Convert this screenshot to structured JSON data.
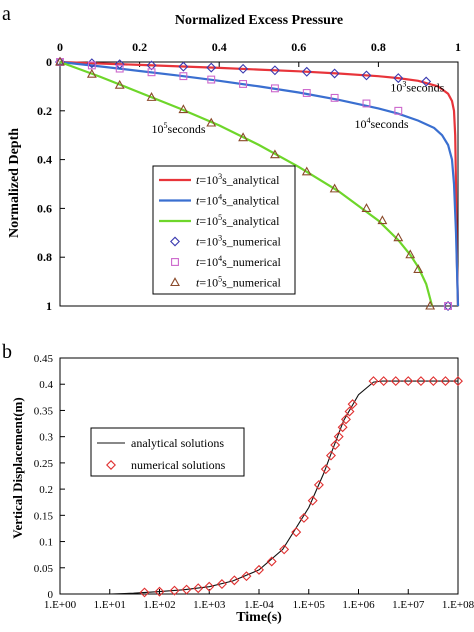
{
  "panels": [
    {
      "label": "a",
      "chart_data": {
        "type": "line",
        "title": "Normalized Excess Pressure",
        "xlabel": "Normalized Excess Pressure",
        "ylabel": "Normalized Depth",
        "xlim": [
          0,
          1
        ],
        "ylim": [
          0,
          1
        ],
        "y_inverted": true,
        "x_axis_position": "top",
        "x_ticks": [
          "0",
          "0.2",
          "0.4",
          "0.6",
          "0.8",
          "1"
        ],
        "y_ticks": [
          "0",
          "0.2",
          "0.4",
          "0.6",
          "0.8",
          "1"
        ],
        "grid": false,
        "legend_position": "lower-left",
        "annotations": [
          {
            "text": "10^3seconds",
            "base": "10",
            "sup": "3",
            "suffix": "seconds",
            "x": 0.83,
            "y": 0.12
          },
          {
            "text": "10^4seconds",
            "base": "10",
            "sup": "4",
            "suffix": "seconds",
            "x": 0.74,
            "y": 0.27
          },
          {
            "text": "10^5seconds",
            "base": "10",
            "sup": "5",
            "suffix": "seconds",
            "x": 0.23,
            "y": 0.29
          }
        ],
        "series": [
          {
            "legend": "t=10^3s_analytical",
            "lead": "t",
            "base": "=10",
            "sup": "3",
            "tail": "s_analytical",
            "kind": "line",
            "color": "#e8343a",
            "x": [
              0,
              0.1,
              0.2,
              0.3,
              0.4,
              0.5,
              0.6,
              0.7,
              0.8,
              0.85,
              0.9,
              0.95,
              0.975,
              0.985,
              0.99,
              0.993,
              0.995,
              0.997,
              1.0
            ],
            "y": [
              0,
              0.006,
              0.012,
              0.018,
              0.024,
              0.031,
              0.038,
              0.047,
              0.058,
              0.066,
              0.077,
              0.1,
              0.13,
              0.16,
              0.2,
              0.3,
              0.5,
              0.8,
              1.0
            ]
          },
          {
            "legend": "t=10^4s_analytical",
            "lead": "t",
            "base": "=10",
            "sup": "4",
            "tail": "s_analytical",
            "kind": "line",
            "color": "#3a6fd0",
            "x": [
              0,
              0.1,
              0.2,
              0.3,
              0.4,
              0.5,
              0.6,
              0.7,
              0.8,
              0.85,
              0.9,
              0.94,
              0.96,
              0.975,
              0.985,
              0.99,
              0.995,
              1.0
            ],
            "y": [
              0,
              0.018,
              0.037,
              0.056,
              0.077,
              0.1,
              0.125,
              0.155,
              0.19,
              0.212,
              0.24,
              0.27,
              0.3,
              0.34,
              0.4,
              0.5,
              0.7,
              1.0
            ]
          },
          {
            "legend": "t=10^5s_analytical",
            "lead": "t",
            "base": "=10",
            "sup": "5",
            "tail": "s_analytical",
            "kind": "line",
            "color": "#6ed62a",
            "x": [
              0,
              0.1,
              0.2,
              0.3,
              0.4,
              0.5,
              0.6,
              0.7,
              0.8,
              0.85,
              0.88,
              0.9,
              0.92,
              0.935
            ],
            "y": [
              0,
              0.06,
              0.125,
              0.19,
              0.26,
              0.34,
              0.43,
              0.53,
              0.65,
              0.73,
              0.79,
              0.84,
              0.91,
              1.0
            ]
          },
          {
            "legend": "t=10^3s_numerical",
            "lead": "t",
            "base": "=10",
            "sup": "3",
            "tail": "s_numerical",
            "kind": "marker",
            "marker": "diamond",
            "color": "#3a3ab0",
            "x": [
              0,
              0.08,
              0.15,
              0.23,
              0.31,
              0.38,
              0.46,
              0.54,
              0.62,
              0.69,
              0.77,
              0.85,
              0.92,
              0.975
            ],
            "y": [
              0,
              0.005,
              0.009,
              0.014,
              0.019,
              0.023,
              0.028,
              0.034,
              0.04,
              0.047,
              0.055,
              0.066,
              0.08,
              1.0
            ]
          },
          {
            "legend": "t=10^4s_numerical",
            "lead": "t",
            "base": "=10",
            "sup": "4",
            "tail": "s_numerical",
            "kind": "marker",
            "marker": "square",
            "color": "#cc66cc",
            "x": [
              0,
              0.08,
              0.15,
              0.23,
              0.31,
              0.38,
              0.46,
              0.54,
              0.62,
              0.69,
              0.77,
              0.85,
              0.975
            ],
            "y": [
              0,
              0.014,
              0.027,
              0.042,
              0.058,
              0.072,
              0.09,
              0.108,
              0.127,
              0.147,
              0.17,
              0.2,
              1.0
            ]
          },
          {
            "legend": "t=10^5s_numerical",
            "lead": "t",
            "base": "=10",
            "sup": "5",
            "tail": "s_numerical",
            "kind": "marker",
            "marker": "triangle",
            "color": "#8a4a2a",
            "x": [
              0,
              0.08,
              0.15,
              0.23,
              0.31,
              0.38,
              0.46,
              0.54,
              0.62,
              0.69,
              0.77,
              0.81,
              0.85,
              0.88,
              0.9,
              0.93
            ],
            "y": [
              0,
              0.05,
              0.095,
              0.145,
              0.195,
              0.25,
              0.31,
              0.38,
              0.45,
              0.52,
              0.6,
              0.65,
              0.72,
              0.79,
              0.85,
              1.0
            ]
          }
        ]
      }
    },
    {
      "label": "b",
      "chart_data": {
        "type": "line",
        "xlabel": "Time(s)",
        "ylabel": "Vertical Displacement(m)",
        "x_scale": "log",
        "xlim": [
          1,
          100000000
        ],
        "ylim": [
          0,
          0.45
        ],
        "x_ticks": [
          "1.E+00",
          "1.E+01",
          "1.E+02",
          "1.E+03",
          "1.E-04",
          "1.E+05",
          "1.E+06",
          "1.E+07",
          "1.E+08"
        ],
        "y_ticks": [
          "0",
          "0.05",
          "0.1",
          "0.15",
          "0.2",
          "0.25",
          "0.3",
          "0.35",
          "0.4",
          "0.45"
        ],
        "grid": false,
        "legend_position": "middle-left",
        "series": [
          {
            "legend": "analytical solutions",
            "kind": "line",
            "color": "#111111",
            "x": [
              10,
              30,
              100,
              300,
              1000,
              3000,
              10000,
              30000,
              100000,
              200000,
              300000,
              500000,
              1000000,
              2000000,
              3000000,
              100000000
            ],
            "y": [
              0,
              0.0015,
              0.0045,
              0.008,
              0.014,
              0.025,
              0.046,
              0.085,
              0.165,
              0.23,
              0.275,
              0.33,
              0.38,
              0.404,
              0.406,
              0.406
            ]
          },
          {
            "legend": "numerical solutions",
            "kind": "marker",
            "marker": "diamond",
            "color": "#e03030",
            "x": [
              50,
              100,
              200,
              350,
              600,
              1000,
              1800,
              3200,
              5600,
              10000,
              18000,
              32000,
              56000,
              80000,
              120000,
              160000,
              220000,
              280000,
              340000,
              400000,
              480000,
              560000,
              660000,
              760000,
              2000000,
              3200000,
              5600000,
              10000000,
              18000000,
              32000000,
              56000000,
              100000000
            ],
            "y": [
              0.003,
              0.0045,
              0.0065,
              0.0085,
              0.011,
              0.014,
              0.019,
              0.026,
              0.034,
              0.046,
              0.062,
              0.085,
              0.118,
              0.145,
              0.178,
              0.208,
              0.238,
              0.264,
              0.284,
              0.3,
              0.318,
              0.333,
              0.348,
              0.362,
              0.406,
              0.406,
              0.406,
              0.406,
              0.406,
              0.406,
              0.406,
              0.406
            ]
          }
        ]
      }
    }
  ]
}
